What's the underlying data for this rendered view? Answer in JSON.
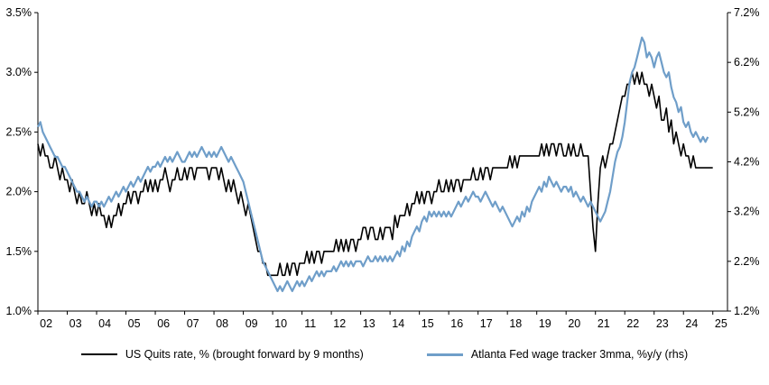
{
  "chart_data": {
    "type": "line",
    "title": "",
    "grid": false,
    "legend_position": "bottom",
    "x_axis": {
      "start_year": 2002,
      "end_year": 2025,
      "tick_labels": [
        "02",
        "03",
        "04",
        "05",
        "06",
        "07",
        "08",
        "09",
        "10",
        "11",
        "12",
        "13",
        "14",
        "15",
        "16",
        "17",
        "18",
        "19",
        "20",
        "21",
        "22",
        "23",
        "24",
        "25"
      ]
    },
    "y_axis_left": {
      "min": 1.0,
      "max": 3.5,
      "ticks": [
        1.0,
        1.5,
        2.0,
        2.5,
        3.0,
        3.5
      ],
      "tick_labels": [
        "1.0%",
        "1.5%",
        "2.0%",
        "2.5%",
        "3.0%",
        "3.5%"
      ]
    },
    "y_axis_right": {
      "min": 1.2,
      "max": 7.2,
      "ticks": [
        1.2,
        2.2,
        3.2,
        4.2,
        5.2,
        6.2,
        7.2
      ],
      "tick_labels": [
        "1.2%",
        "2.2%",
        "3.2%",
        "4.2%",
        "5.2%",
        "6.2%",
        "7.2%"
      ]
    },
    "series": [
      {
        "name": "US Quits rate, % (brought forward by 9 months)",
        "axis": "left",
        "color": "#000000",
        "start": 2002.0,
        "step_months": 1,
        "values": [
          2.4,
          2.3,
          2.4,
          2.3,
          2.3,
          2.2,
          2.2,
          2.3,
          2.2,
          2.1,
          2.2,
          2.1,
          2.1,
          2.0,
          2.1,
          2.0,
          1.9,
          2.0,
          1.9,
          1.9,
          2.0,
          1.9,
          1.8,
          1.9,
          1.8,
          1.9,
          1.8,
          1.8,
          1.7,
          1.8,
          1.7,
          1.8,
          1.8,
          1.9,
          1.8,
          1.9,
          1.9,
          2.0,
          1.9,
          2.0,
          2.0,
          1.9,
          2.0,
          2.0,
          2.1,
          2.0,
          2.1,
          2.0,
          2.1,
          2.0,
          2.1,
          2.1,
          2.2,
          2.1,
          2.0,
          2.1,
          2.1,
          2.2,
          2.1,
          2.1,
          2.2,
          2.1,
          2.2,
          2.2,
          2.1,
          2.2,
          2.2,
          2.2,
          2.2,
          2.2,
          2.1,
          2.2,
          2.2,
          2.2,
          2.1,
          2.2,
          2.1,
          2.0,
          2.1,
          2.0,
          2.1,
          2.0,
          1.9,
          2.0,
          1.9,
          1.8,
          1.9,
          1.8,
          1.7,
          1.6,
          1.5,
          1.5,
          1.4,
          1.4,
          1.3,
          1.3,
          1.3,
          1.3,
          1.3,
          1.4,
          1.3,
          1.3,
          1.4,
          1.3,
          1.4,
          1.4,
          1.3,
          1.4,
          1.4,
          1.4,
          1.5,
          1.4,
          1.5,
          1.4,
          1.5,
          1.5,
          1.4,
          1.5,
          1.5,
          1.5,
          1.5,
          1.5,
          1.6,
          1.5,
          1.6,
          1.5,
          1.6,
          1.5,
          1.6,
          1.6,
          1.5,
          1.6,
          1.6,
          1.7,
          1.7,
          1.6,
          1.7,
          1.7,
          1.6,
          1.6,
          1.7,
          1.6,
          1.7,
          1.7,
          1.7,
          1.6,
          1.8,
          1.7,
          1.8,
          1.8,
          1.8,
          1.9,
          1.8,
          1.9,
          1.9,
          2.0,
          1.9,
          2.0,
          1.9,
          2.0,
          2.0,
          1.9,
          2.0,
          2.0,
          2.1,
          2.0,
          2.0,
          2.1,
          2.0,
          2.1,
          2.0,
          2.1,
          2.1,
          2.0,
          2.1,
          2.1,
          2.1,
          2.1,
          2.2,
          2.1,
          2.1,
          2.2,
          2.1,
          2.2,
          2.2,
          2.1,
          2.2,
          2.2,
          2.2,
          2.2,
          2.2,
          2.2,
          2.2,
          2.3,
          2.2,
          2.3,
          2.2,
          2.3,
          2.3,
          2.3,
          2.3,
          2.3,
          2.3,
          2.3,
          2.3,
          2.3,
          2.4,
          2.3,
          2.4,
          2.3,
          2.4,
          2.4,
          2.3,
          2.4,
          2.4,
          2.3,
          2.3,
          2.4,
          2.3,
          2.4,
          2.3,
          2.3,
          2.4,
          2.3,
          2.3,
          2.3,
          2.0,
          1.7,
          1.5,
          1.9,
          2.2,
          2.3,
          2.2,
          2.3,
          2.4,
          2.4,
          2.5,
          2.6,
          2.7,
          2.8,
          2.8,
          2.9,
          2.9,
          3.0,
          2.9,
          3.0,
          2.9,
          3.0,
          2.9,
          2.9,
          2.8,
          2.9,
          2.8,
          2.7,
          2.8,
          2.6,
          2.6,
          2.7,
          2.5,
          2.6,
          2.4,
          2.5,
          2.4,
          2.3,
          2.4,
          2.3,
          2.3,
          2.2,
          2.3,
          2.2,
          2.2,
          2.2,
          2.2,
          2.2,
          2.2,
          2.2,
          2.2
        ]
      },
      {
        "name": "Atlanta Fed wage tracker 3mma, %y/y (rhs)",
        "axis": "right",
        "color": "#6f9ec9",
        "start": 2002.0,
        "step_months": 1,
        "values": [
          4.9,
          5.0,
          4.8,
          4.7,
          4.6,
          4.5,
          4.4,
          4.3,
          4.3,
          4.2,
          4.1,
          4.1,
          4.0,
          3.9,
          3.8,
          3.7,
          3.6,
          3.6,
          3.5,
          3.4,
          3.5,
          3.4,
          3.3,
          3.4,
          3.4,
          3.3,
          3.4,
          3.3,
          3.4,
          3.5,
          3.4,
          3.5,
          3.6,
          3.5,
          3.6,
          3.7,
          3.6,
          3.7,
          3.8,
          3.7,
          3.8,
          3.9,
          3.8,
          3.9,
          4.0,
          4.1,
          4.0,
          4.1,
          4.1,
          4.2,
          4.1,
          4.2,
          4.3,
          4.2,
          4.3,
          4.2,
          4.3,
          4.4,
          4.3,
          4.2,
          4.2,
          4.3,
          4.4,
          4.3,
          4.4,
          4.3,
          4.4,
          4.5,
          4.4,
          4.3,
          4.4,
          4.3,
          4.4,
          4.3,
          4.4,
          4.5,
          4.4,
          4.3,
          4.2,
          4.3,
          4.2,
          4.1,
          4.0,
          3.9,
          3.8,
          3.6,
          3.4,
          3.2,
          3.0,
          2.8,
          2.6,
          2.4,
          2.2,
          2.1,
          2.0,
          1.9,
          1.8,
          1.7,
          1.6,
          1.7,
          1.6,
          1.7,
          1.8,
          1.7,
          1.6,
          1.7,
          1.8,
          1.7,
          1.8,
          1.7,
          1.8,
          1.9,
          1.8,
          1.9,
          2.0,
          1.9,
          2.0,
          1.9,
          2.0,
          2.0,
          2.0,
          2.1,
          2.0,
          2.1,
          2.2,
          2.1,
          2.2,
          2.1,
          2.2,
          2.1,
          2.2,
          2.2,
          2.2,
          2.1,
          2.2,
          2.3,
          2.2,
          2.2,
          2.3,
          2.2,
          2.3,
          2.2,
          2.3,
          2.2,
          2.3,
          2.2,
          2.3,
          2.4,
          2.3,
          2.5,
          2.4,
          2.6,
          2.5,
          2.7,
          2.8,
          2.9,
          2.8,
          3.0,
          3.1,
          3.0,
          3.2,
          3.1,
          3.2,
          3.1,
          3.2,
          3.1,
          3.2,
          3.1,
          3.2,
          3.1,
          3.2,
          3.3,
          3.4,
          3.3,
          3.4,
          3.5,
          3.4,
          3.5,
          3.6,
          3.5,
          3.5,
          3.4,
          3.5,
          3.6,
          3.5,
          3.4,
          3.3,
          3.4,
          3.3,
          3.2,
          3.3,
          3.2,
          3.1,
          3.0,
          2.9,
          3.0,
          3.1,
          3.0,
          3.2,
          3.1,
          3.3,
          3.2,
          3.4,
          3.5,
          3.6,
          3.7,
          3.6,
          3.8,
          3.7,
          3.9,
          3.8,
          3.7,
          3.8,
          3.7,
          3.6,
          3.7,
          3.7,
          3.6,
          3.7,
          3.5,
          3.6,
          3.5,
          3.4,
          3.5,
          3.4,
          3.3,
          3.4,
          3.3,
          3.2,
          3.1,
          3.0,
          3.1,
          3.2,
          3.4,
          3.6,
          3.9,
          4.2,
          4.4,
          4.5,
          4.7,
          5.0,
          5.4,
          5.8,
          6.0,
          6.1,
          6.3,
          6.5,
          6.7,
          6.6,
          6.3,
          6.4,
          6.3,
          6.1,
          6.3,
          6.4,
          6.2,
          6.0,
          5.9,
          6.0,
          5.7,
          5.5,
          5.4,
          5.2,
          5.3,
          5.0,
          4.9,
          5.0,
          4.8,
          4.7,
          4.8,
          4.7,
          4.6,
          4.7,
          4.6,
          4.7
        ]
      }
    ]
  }
}
